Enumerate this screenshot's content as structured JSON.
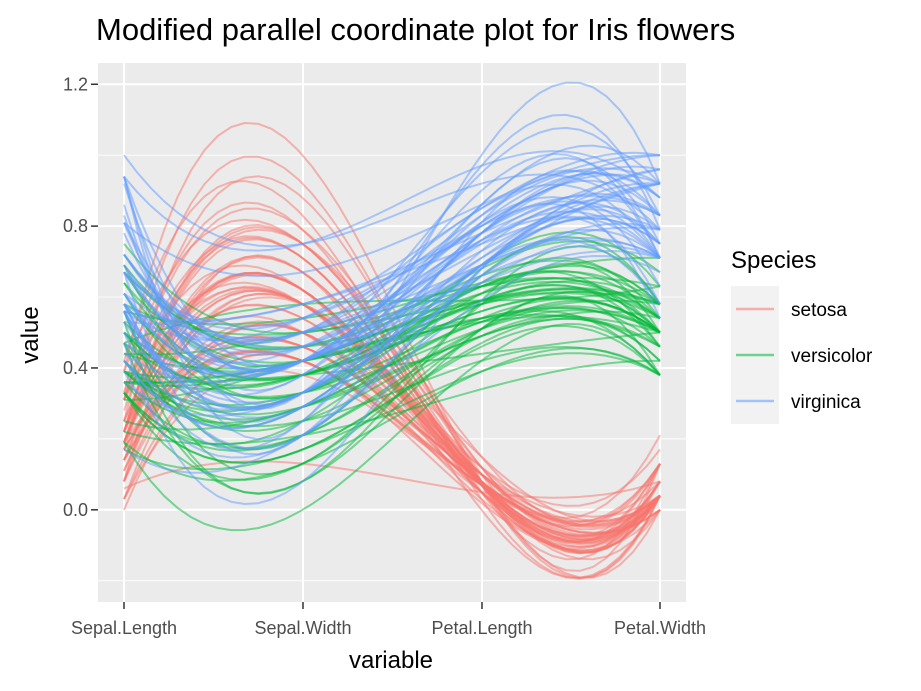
{
  "chart_data": {
    "type": "line",
    "title": "Modified parallel coordinate plot for Iris flowers",
    "xlabel": "variable",
    "ylabel": "value",
    "categories": [
      "Sepal.Length",
      "Sepal.Width",
      "Petal.Length",
      "Petal.Width"
    ],
    "ylim": [
      -0.26,
      1.26
    ],
    "yticks": [
      0.0,
      0.4,
      0.8,
      1.2
    ],
    "ytick_labels": [
      "0.0",
      "0.4",
      "0.8",
      "1.2"
    ],
    "grid": true,
    "legend": {
      "title": "Species",
      "placement": "right"
    },
    "series": [
      {
        "name": "setosa",
        "color": "#F8766D",
        "lines": [
          [
            0.22,
            0.62,
            0.07,
            0.04
          ],
          [
            0.17,
            0.42,
            0.07,
            0.04
          ],
          [
            0.11,
            0.5,
            0.05,
            0.04
          ],
          [
            0.08,
            0.46,
            0.08,
            0.04
          ],
          [
            0.19,
            0.67,
            0.07,
            0.04
          ],
          [
            0.31,
            0.79,
            0.12,
            0.13
          ],
          [
            0.08,
            0.58,
            0.07,
            0.08
          ],
          [
            0.19,
            0.58,
            0.08,
            0.04
          ],
          [
            0.03,
            0.38,
            0.07,
            0.04
          ],
          [
            0.17,
            0.46,
            0.08,
            0.0
          ],
          [
            0.31,
            0.71,
            0.08,
            0.04
          ],
          [
            0.14,
            0.58,
            0.1,
            0.04
          ],
          [
            0.14,
            0.42,
            0.07,
            0.0
          ],
          [
            0.0,
            0.42,
            0.02,
            0.0
          ],
          [
            0.42,
            0.83,
            0.03,
            0.04
          ],
          [
            0.39,
            1.0,
            0.08,
            0.13
          ],
          [
            0.31,
            0.79,
            0.05,
            0.13
          ],
          [
            0.22,
            0.62,
            0.07,
            0.08
          ],
          [
            0.39,
            0.75,
            0.12,
            0.08
          ],
          [
            0.22,
            0.75,
            0.08,
            0.08
          ],
          [
            0.31,
            0.58,
            0.12,
            0.04
          ],
          [
            0.22,
            0.71,
            0.08,
            0.13
          ],
          [
            0.08,
            0.67,
            0.0,
            0.04
          ],
          [
            0.22,
            0.54,
            0.12,
            0.17
          ],
          [
            0.14,
            0.58,
            0.15,
            0.04
          ],
          [
            0.19,
            0.42,
            0.1,
            0.04
          ],
          [
            0.19,
            0.58,
            0.1,
            0.13
          ],
          [
            0.25,
            0.62,
            0.08,
            0.04
          ],
          [
            0.25,
            0.58,
            0.07,
            0.04
          ],
          [
            0.11,
            0.5,
            0.1,
            0.04
          ],
          [
            0.14,
            0.46,
            0.1,
            0.04
          ],
          [
            0.31,
            0.58,
            0.08,
            0.13
          ],
          [
            0.25,
            0.88,
            0.08,
            0.0
          ],
          [
            0.33,
            0.92,
            0.07,
            0.04
          ],
          [
            0.17,
            0.46,
            0.08,
            0.0
          ],
          [
            0.19,
            0.5,
            0.03,
            0.04
          ],
          [
            0.33,
            0.62,
            0.05,
            0.04
          ],
          [
            0.17,
            0.67,
            0.07,
            0.0
          ],
          [
            0.03,
            0.42,
            0.05,
            0.04
          ],
          [
            0.22,
            0.58,
            0.08,
            0.04
          ],
          [
            0.19,
            0.62,
            0.05,
            0.08
          ],
          [
            0.06,
            0.13,
            0.05,
            0.08
          ],
          [
            0.03,
            0.5,
            0.05,
            0.04
          ],
          [
            0.19,
            0.62,
            0.1,
            0.21
          ],
          [
            0.22,
            0.75,
            0.15,
            0.13
          ],
          [
            0.14,
            0.42,
            0.07,
            0.08
          ],
          [
            0.22,
            0.75,
            0.1,
            0.04
          ],
          [
            0.08,
            0.5,
            0.07,
            0.04
          ],
          [
            0.28,
            0.71,
            0.08,
            0.04
          ],
          [
            0.19,
            0.54,
            0.07,
            0.04
          ]
        ]
      },
      {
        "name": "versicolor",
        "color": "#00BA38",
        "lines": [
          [
            0.75,
            0.5,
            0.63,
            0.54
          ],
          [
            0.58,
            0.5,
            0.59,
            0.58
          ],
          [
            0.72,
            0.46,
            0.66,
            0.58
          ],
          [
            0.33,
            0.13,
            0.51,
            0.5
          ],
          [
            0.61,
            0.33,
            0.61,
            0.58
          ],
          [
            0.39,
            0.33,
            0.59,
            0.5
          ],
          [
            0.56,
            0.54,
            0.63,
            0.63
          ],
          [
            0.17,
            0.17,
            0.39,
            0.38
          ],
          [
            0.64,
            0.38,
            0.61,
            0.5
          ],
          [
            0.25,
            0.29,
            0.49,
            0.54
          ],
          [
            0.19,
            0.0,
            0.42,
            0.38
          ],
          [
            0.44,
            0.42,
            0.54,
            0.58
          ],
          [
            0.47,
            0.08,
            0.51,
            0.38
          ],
          [
            0.5,
            0.38,
            0.63,
            0.54
          ],
          [
            0.36,
            0.38,
            0.44,
            0.5
          ],
          [
            0.67,
            0.46,
            0.58,
            0.54
          ],
          [
            0.36,
            0.42,
            0.59,
            0.58
          ],
          [
            0.42,
            0.29,
            0.53,
            0.38
          ],
          [
            0.53,
            0.08,
            0.59,
            0.58
          ],
          [
            0.36,
            0.21,
            0.49,
            0.42
          ],
          [
            0.44,
            0.5,
            0.64,
            0.71
          ],
          [
            0.5,
            0.33,
            0.51,
            0.5
          ],
          [
            0.56,
            0.21,
            0.66,
            0.58
          ],
          [
            0.5,
            0.33,
            0.63,
            0.46
          ],
          [
            0.58,
            0.38,
            0.56,
            0.5
          ],
          [
            0.64,
            0.42,
            0.58,
            0.54
          ],
          [
            0.69,
            0.33,
            0.64,
            0.54
          ],
          [
            0.67,
            0.42,
            0.68,
            0.67
          ],
          [
            0.47,
            0.38,
            0.59,
            0.58
          ],
          [
            0.39,
            0.25,
            0.42,
            0.38
          ],
          [
            0.33,
            0.17,
            0.47,
            0.42
          ],
          [
            0.33,
            0.17,
            0.46,
            0.38
          ],
          [
            0.42,
            0.29,
            0.49,
            0.46
          ],
          [
            0.47,
            0.29,
            0.69,
            0.63
          ],
          [
            0.31,
            0.42,
            0.59,
            0.58
          ],
          [
            0.47,
            0.58,
            0.59,
            0.63
          ],
          [
            0.69,
            0.46,
            0.63,
            0.58
          ],
          [
            0.56,
            0.13,
            0.58,
            0.5
          ],
          [
            0.36,
            0.42,
            0.53,
            0.5
          ],
          [
            0.33,
            0.21,
            0.51,
            0.5
          ],
          [
            0.33,
            0.25,
            0.58,
            0.46
          ],
          [
            0.5,
            0.42,
            0.61,
            0.54
          ],
          [
            0.42,
            0.25,
            0.51,
            0.46
          ],
          [
            0.19,
            0.13,
            0.39,
            0.38
          ],
          [
            0.36,
            0.29,
            0.54,
            0.5
          ],
          [
            0.39,
            0.42,
            0.54,
            0.46
          ],
          [
            0.39,
            0.38,
            0.54,
            0.5
          ],
          [
            0.53,
            0.38,
            0.56,
            0.5
          ],
          [
            0.22,
            0.21,
            0.34,
            0.42
          ],
          [
            0.39,
            0.33,
            0.53,
            0.5
          ]
        ]
      },
      {
        "name": "virginica",
        "color": "#619CFF",
        "lines": [
          [
            0.56,
            0.54,
            0.85,
            1.0
          ],
          [
            0.42,
            0.29,
            0.69,
            0.75
          ],
          [
            0.78,
            0.42,
            0.83,
            0.83
          ],
          [
            0.56,
            0.38,
            0.78,
            0.71
          ],
          [
            0.61,
            0.42,
            0.81,
            0.88
          ],
          [
            0.92,
            0.42,
            0.95,
            0.83
          ],
          [
            0.17,
            0.21,
            0.59,
            0.67
          ],
          [
            0.83,
            0.38,
            0.9,
            0.71
          ],
          [
            0.67,
            0.21,
            0.81,
            0.71
          ],
          [
            0.81,
            0.67,
            0.86,
            1.0
          ],
          [
            0.61,
            0.5,
            0.69,
            0.79
          ],
          [
            0.58,
            0.29,
            0.73,
            0.75
          ],
          [
            0.69,
            0.42,
            0.76,
            0.83
          ],
          [
            0.39,
            0.21,
            0.68,
            0.79
          ],
          [
            0.42,
            0.33,
            0.69,
            0.96
          ],
          [
            0.58,
            0.5,
            0.73,
            0.92
          ],
          [
            0.61,
            0.42,
            0.76,
            0.71
          ],
          [
            0.94,
            0.75,
            0.97,
            0.88
          ],
          [
            0.94,
            0.25,
            1.0,
            0.92
          ],
          [
            0.47,
            0.08,
            0.68,
            0.58
          ],
          [
            0.72,
            0.5,
            0.8,
            0.92
          ],
          [
            0.36,
            0.33,
            0.66,
            0.79
          ],
          [
            0.94,
            0.33,
            0.97,
            0.79
          ],
          [
            0.56,
            0.29,
            0.66,
            0.71
          ],
          [
            0.67,
            0.54,
            0.8,
            0.83
          ],
          [
            0.81,
            0.5,
            0.85,
            0.71
          ],
          [
            0.53,
            0.33,
            0.64,
            0.71
          ],
          [
            0.5,
            0.42,
            0.66,
            0.71
          ],
          [
            0.58,
            0.33,
            0.78,
            0.83
          ],
          [
            0.81,
            0.42,
            0.81,
            0.63
          ],
          [
            0.86,
            0.33,
            0.86,
            0.75
          ],
          [
            1.0,
            0.75,
            0.92,
            0.79
          ],
          [
            0.58,
            0.33,
            0.78,
            0.88
          ],
          [
            0.56,
            0.33,
            0.69,
            0.58
          ],
          [
            0.5,
            0.25,
            0.78,
            0.54
          ],
          [
            0.94,
            0.42,
            0.86,
            0.92
          ],
          [
            0.56,
            0.58,
            0.78,
            0.96
          ],
          [
            0.58,
            0.46,
            0.76,
            0.71
          ],
          [
            0.47,
            0.42,
            0.64,
            0.71
          ],
          [
            0.72,
            0.46,
            0.75,
            0.83
          ],
          [
            0.67,
            0.46,
            0.78,
            0.96
          ],
          [
            0.72,
            0.46,
            0.69,
            0.92
          ],
          [
            0.42,
            0.29,
            0.69,
            0.75
          ],
          [
            0.69,
            0.5,
            0.83,
            0.92
          ],
          [
            0.67,
            0.54,
            0.8,
            1.0
          ],
          [
            0.67,
            0.42,
            0.71,
            0.92
          ],
          [
            0.56,
            0.21,
            0.68,
            0.75
          ],
          [
            0.61,
            0.42,
            0.71,
            0.79
          ],
          [
            0.53,
            0.58,
            0.75,
            0.92
          ],
          [
            0.44,
            0.42,
            0.69,
            0.71
          ]
        ]
      }
    ]
  }
}
